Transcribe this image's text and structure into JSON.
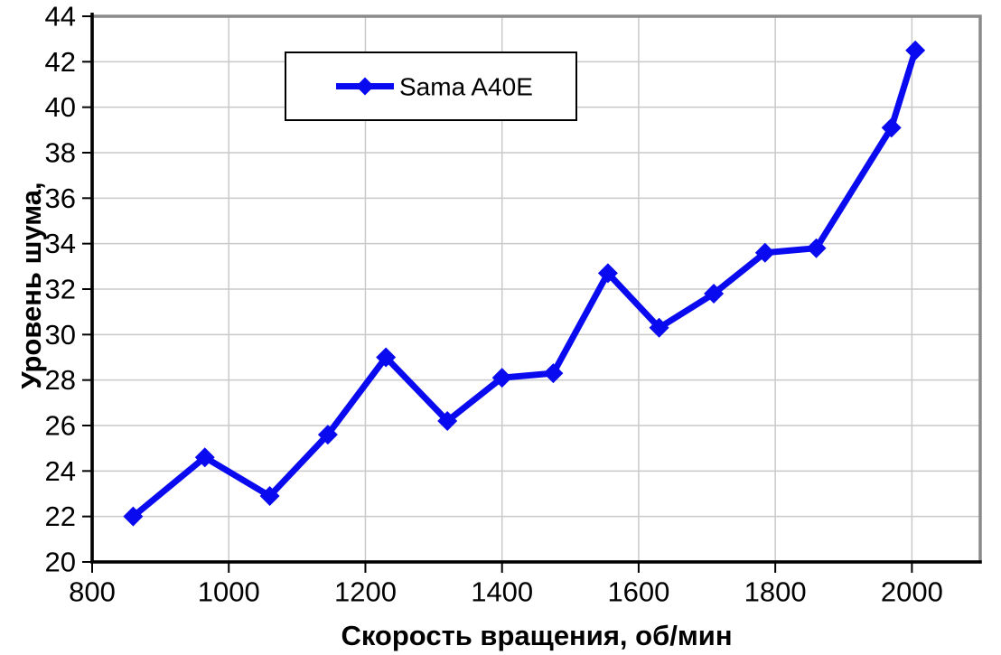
{
  "chart_data": {
    "type": "line",
    "title": "",
    "xlabel": "Скорость вращения, об/мин",
    "ylabel": "Уровень шума,",
    "xlim": [
      800,
      2100
    ],
    "ylim": [
      20,
      44
    ],
    "xticks": [
      800,
      1000,
      1200,
      1400,
      1600,
      1800,
      2000
    ],
    "yticks": [
      20,
      22,
      24,
      26,
      28,
      30,
      32,
      34,
      36,
      38,
      40,
      42,
      44
    ],
    "grid": true,
    "legend_position": "top-center",
    "series": [
      {
        "name": "Sama A40E",
        "marker": "diamond",
        "x": [
          860,
          965,
          1060,
          1145,
          1230,
          1320,
          1400,
          1475,
          1555,
          1630,
          1710,
          1785,
          1860,
          1970,
          2005
        ],
        "y": [
          22.0,
          24.6,
          22.9,
          25.6,
          29.0,
          26.2,
          28.1,
          28.3,
          32.7,
          30.3,
          31.8,
          33.6,
          33.8,
          39.1,
          42.5
        ]
      }
    ],
    "colors": {
      "line": "#0a0af0",
      "grid": "#c9c9c9",
      "plot_border": "#8a8a8a",
      "axis": "#000000",
      "background": "#ffffff",
      "legend_border": "#000000",
      "text": "#000000"
    }
  }
}
